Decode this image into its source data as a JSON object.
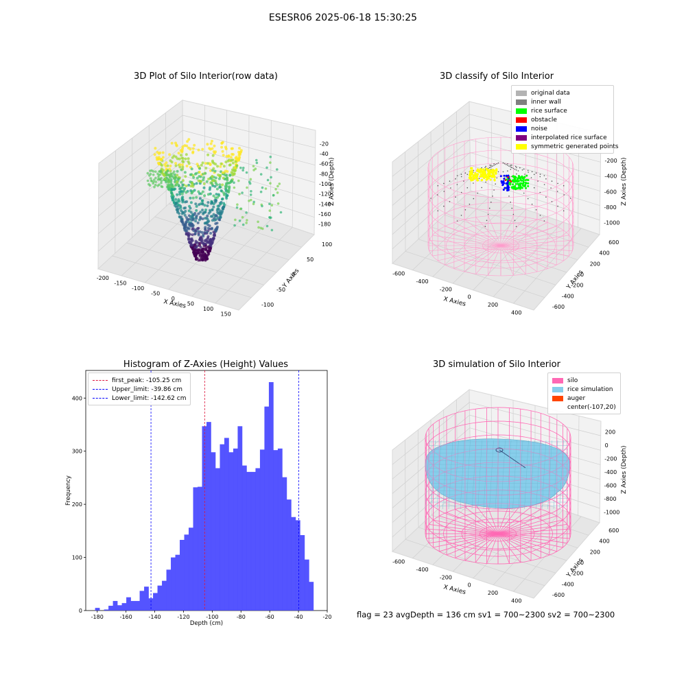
{
  "suptitle": "ESESR06 2025-06-18 15:30:25",
  "panels": {
    "raw": {
      "title": "3D Plot of Silo Interior(row data)",
      "xlabel": "X Axies",
      "ylabel": "Y Axies",
      "zlabel": "Z Axies (Depth)",
      "xticks": [
        "-200",
        "-150",
        "-100",
        "-50",
        "0",
        "50",
        "100",
        "150"
      ],
      "yticks": [
        "-100",
        "-50",
        "0",
        "50",
        "100"
      ],
      "zticks": [
        "-20",
        "-40",
        "-60",
        "-80",
        "-100",
        "-120",
        "-140",
        "-160",
        "-180"
      ]
    },
    "classify": {
      "title": "3D classify of Silo Interior",
      "xlabel": "X Axies",
      "ylabel": "Y Axies",
      "zlabel": "Z Axies (Depth)",
      "xticks": [
        "-600",
        "-400",
        "-200",
        "0",
        "200",
        "400"
      ],
      "yticks": [
        "-600",
        "-400",
        "-200",
        "0",
        "200",
        "400",
        "600"
      ],
      "zticks": [
        "0",
        "-200",
        "-400",
        "-600",
        "-800",
        "-1000"
      ],
      "legend": [
        {
          "label": "original data",
          "color": "#b3b3b3"
        },
        {
          "label": "inner wall",
          "color": "#808080"
        },
        {
          "label": "rice surface",
          "color": "#00ff00"
        },
        {
          "label": "obstacle",
          "color": "#ff0000"
        },
        {
          "label": "noise",
          "color": "#0000ff"
        },
        {
          "label": "interpolated rice surface",
          "color": "#800080"
        },
        {
          "label": "symmetric generated points",
          "color": "#ffff00"
        }
      ]
    },
    "simulation": {
      "title": "3D simulation of Silo Interior",
      "xlabel": "X Axies",
      "ylabel": "Y Axies",
      "zlabel": "Z Axies (Depth)",
      "xticks": [
        "-600",
        "-400",
        "-200",
        "0",
        "200",
        "400"
      ],
      "yticks": [
        "-600",
        "-400",
        "-200",
        "0",
        "200",
        "400",
        "600"
      ],
      "zticks": [
        "200",
        "0",
        "-200",
        "-400",
        "-600",
        "-800",
        "-1000"
      ],
      "legend": [
        {
          "label": "silo",
          "color": "#ff69b4"
        },
        {
          "label": "rice simulation",
          "color": "#87ceeb"
        },
        {
          "label": "auger",
          "color": "#ff4500"
        },
        {
          "label": "center(-107,20)",
          "color": ""
        }
      ],
      "stats": "flag = 23  avgDepth = 136 cm  sv1 = 700~2300  sv2 = 700~2300"
    }
  },
  "chart_data": {
    "type": "bar",
    "title": "Histogram of Z-Axies (Height) Values",
    "xlabel": "Depth (cm)",
    "ylabel": "Frequency",
    "xlim": [
      -188,
      -20
    ],
    "ylim": [
      0,
      452
    ],
    "xticks": [
      -180,
      -160,
      -140,
      -120,
      -100,
      -80,
      -60,
      -40,
      -20
    ],
    "yticks": [
      0,
      100,
      200,
      300,
      400
    ],
    "bar_color": "#4b4bff",
    "bin_width": 3.1,
    "bin_start": -181.5,
    "values": [
      5,
      0,
      2,
      9,
      18,
      10,
      14,
      25,
      18,
      18,
      37,
      45,
      23,
      33,
      47,
      56,
      77,
      100,
      105,
      133,
      143,
      156,
      232,
      233,
      347,
      355,
      298,
      268,
      313,
      325,
      298,
      305,
      347,
      273,
      261,
      261,
      268,
      303,
      384,
      430,
      302,
      305,
      251,
      209,
      176,
      170,
      142,
      96,
      54
    ],
    "vlines": [
      {
        "label": "first_peak: -105.25 cm",
        "x": -105.25,
        "color": "#dc143c"
      },
      {
        "label": "Upper_limit: -39.86 cm",
        "x": -39.86,
        "color": "#0000ff"
      },
      {
        "label": "Lower_limit: -142.62 cm",
        "x": -142.62,
        "color": "#0000ff"
      }
    ],
    "legend_position": "top-left"
  }
}
